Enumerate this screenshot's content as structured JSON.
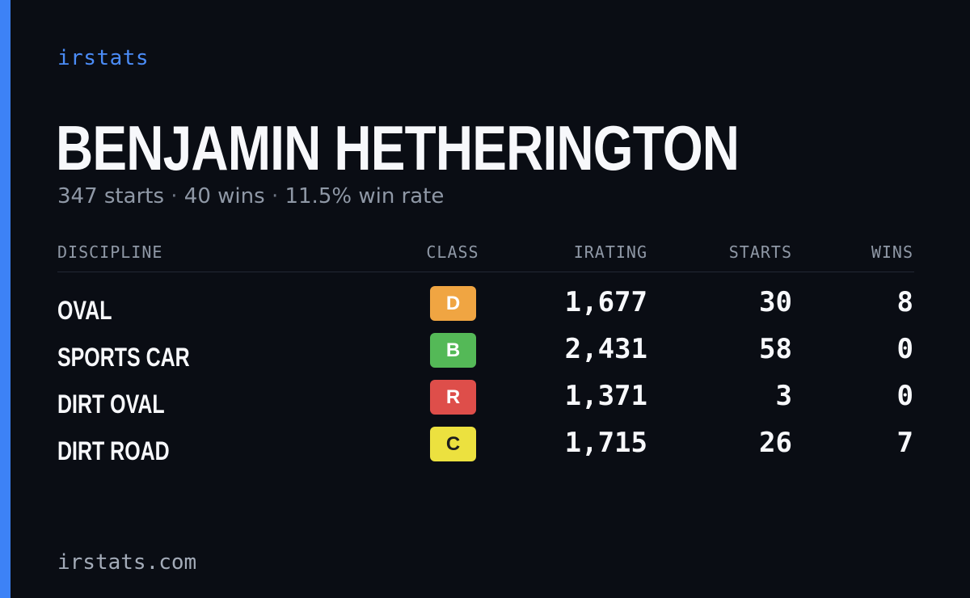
{
  "brand": "irstats",
  "driver": {
    "name": "BENJAMIN HETHERINGTON"
  },
  "summary": {
    "starts": "347 starts",
    "wins": "40 wins",
    "win_rate": "11.5% win rate",
    "separator": "·"
  },
  "table": {
    "headers": {
      "discipline": "DISCIPLINE",
      "class": "CLASS",
      "irating": "IRATING",
      "starts": "STARTS",
      "wins": "WINS"
    },
    "rows": [
      {
        "discipline": "OVAL",
        "class": "D",
        "class_color": "#f0a542",
        "class_text_color": "#ffffff",
        "irating": "1,677",
        "starts": "30",
        "wins": "8"
      },
      {
        "discipline": "SPORTS CAR",
        "class": "B",
        "class_color": "#54b957",
        "class_text_color": "#ffffff",
        "irating": "2,431",
        "starts": "58",
        "wins": "0"
      },
      {
        "discipline": "DIRT OVAL",
        "class": "R",
        "class_color": "#de4e4a",
        "class_text_color": "#ffffff",
        "irating": "1,371",
        "starts": "3",
        "wins": "0"
      },
      {
        "discipline": "DIRT ROAD",
        "class": "C",
        "class_color": "#ece13f",
        "class_text_color": "#1d1d1d",
        "irating": "1,715",
        "starts": "26",
        "wins": "7"
      }
    ]
  },
  "footer": "irstats.com",
  "colors": {
    "background": "#0a0d14",
    "accent": "#3d82f6",
    "muted_text": "#8f98a6"
  }
}
